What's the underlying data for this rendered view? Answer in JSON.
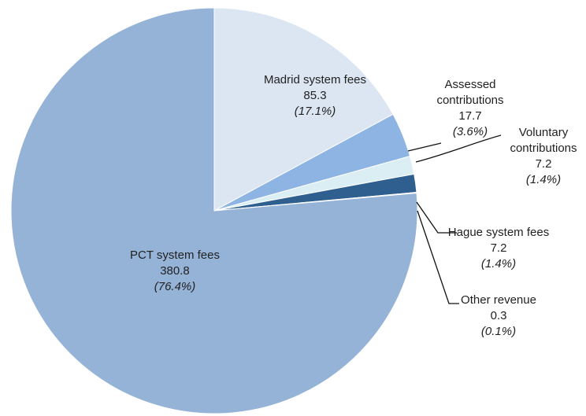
{
  "chart_data": {
    "type": "pie",
    "categories": [
      "Madrid system fees",
      "Assessed contributions",
      "Voluntary contributions",
      "Hague system fees",
      "Other revenue",
      "PCT system fees"
    ],
    "values": [
      85.3,
      17.7,
      7.2,
      7.2,
      0.3,
      380.8
    ],
    "percents": [
      17.1,
      3.6,
      1.4,
      1.4,
      0.1,
      76.4
    ],
    "percent_labels": [
      "(17.1%)",
      "(3.6%)",
      "(1.4%)",
      "(1.4%)",
      "(0.1%)",
      "(76.4%)"
    ],
    "colors": [
      "#dce6f2",
      "#8db4e2",
      "#dbeef4",
      "#2f5f8f",
      "#1f3864",
      "#95b3d7"
    ]
  }
}
